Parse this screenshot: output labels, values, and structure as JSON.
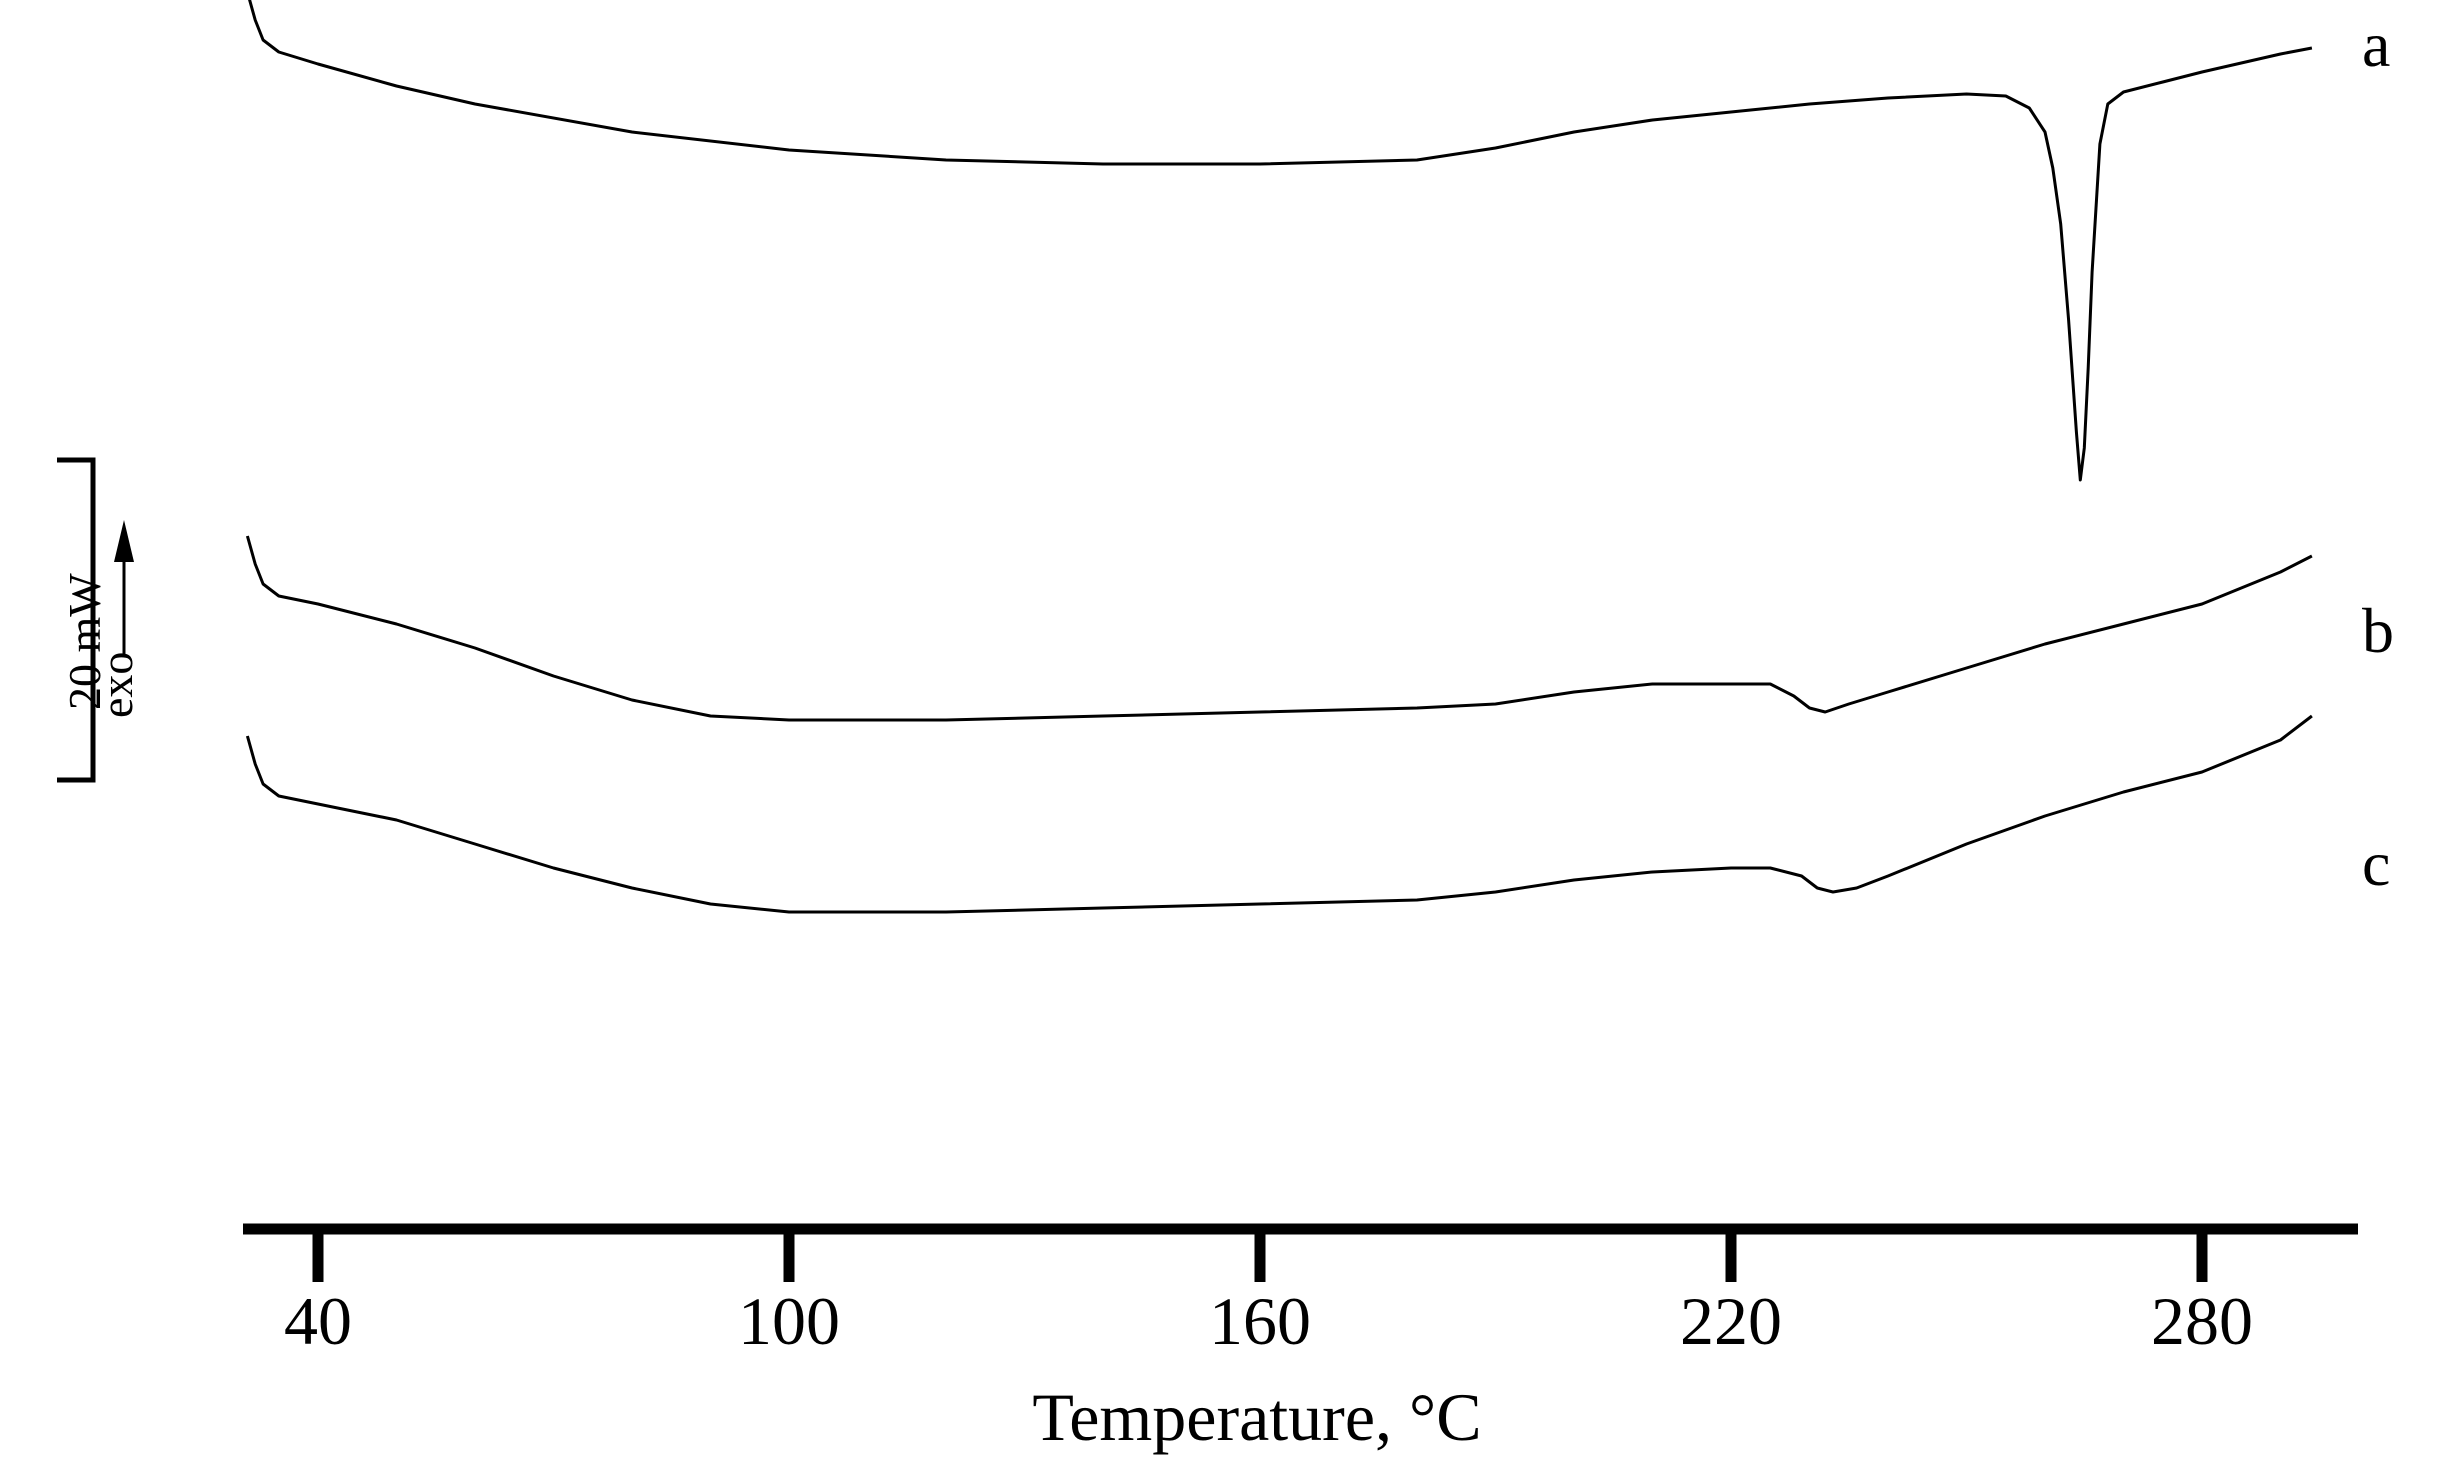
{
  "chart_data": {
    "type": "line",
    "title": "",
    "xlabel": "Temperature, °C",
    "ylabel": "",
    "xlim": [
      32,
      296
    ],
    "x_ticks": [
      40,
      100,
      160,
      220,
      280
    ],
    "x_tick_labels": [
      "40",
      "100",
      "160",
      "220",
      "280"
    ],
    "y_ticks_shown": false,
    "grid": false,
    "scale_bar": {
      "value_label": "20 mW",
      "direction_label": "exo"
    },
    "series": [
      {
        "name": "a",
        "curve_label": "a",
        "x": [
          31,
          32,
          33,
          35,
          40,
          50,
          60,
          80,
          100,
          120,
          140,
          160,
          180,
          190,
          200,
          210,
          220,
          230,
          240,
          250,
          255,
          258,
          260,
          261,
          262,
          263,
          264,
          264.5,
          265,
          265.5,
          266,
          267,
          268,
          270,
          275,
          280,
          290,
          294
        ],
        "y": [
          62,
          55,
          50,
          47,
          44,
          38.5,
          34,
          27,
          22.5,
          20,
          19,
          19,
          20,
          23,
          27,
          30,
          32,
          34,
          35.5,
          36.5,
          36,
          33,
          27,
          18,
          4,
          -20,
          -48,
          -60,
          -52,
          -32,
          -8,
          24,
          34,
          37,
          39.5,
          42,
          46.5,
          48
        ]
      },
      {
        "name": "b",
        "curve_label": "b",
        "x": [
          31,
          32,
          33,
          35,
          40,
          50,
          60,
          70,
          80,
          90,
          100,
          120,
          140,
          160,
          180,
          190,
          200,
          210,
          220,
          225,
          228,
          230,
          232,
          235,
          240,
          250,
          260,
          270,
          280,
          290,
          294
        ],
        "y": [
          -74,
          -81,
          -86,
          -89,
          -91,
          -96,
          -102,
          -109,
          -115,
          -119,
          -120,
          -120,
          -119,
          -118,
          -117,
          -116,
          -113,
          -111,
          -111,
          -111,
          -114,
          -117,
          -118,
          -116,
          -113,
          -107,
          -101,
          -96,
          -91,
          -83,
          -79
        ]
      },
      {
        "name": "c",
        "curve_label": "c",
        "x": [
          31,
          32,
          33,
          35,
          40,
          50,
          60,
          70,
          80,
          90,
          100,
          120,
          140,
          160,
          180,
          190,
          200,
          210,
          220,
          225,
          229,
          231,
          233,
          236,
          240,
          250,
          260,
          270,
          280,
          290,
          294
        ],
        "y": [
          -124,
          -131,
          -136,
          -139,
          -141,
          -145,
          -151,
          -157,
          -162,
          -166,
          -168,
          -168,
          -167,
          -166,
          -165,
          -163,
          -160,
          -158,
          -157,
          -157,
          -159,
          -162,
          -163,
          -162,
          -159,
          -151,
          -144,
          -138,
          -133,
          -125,
          -119
        ]
      }
    ]
  }
}
